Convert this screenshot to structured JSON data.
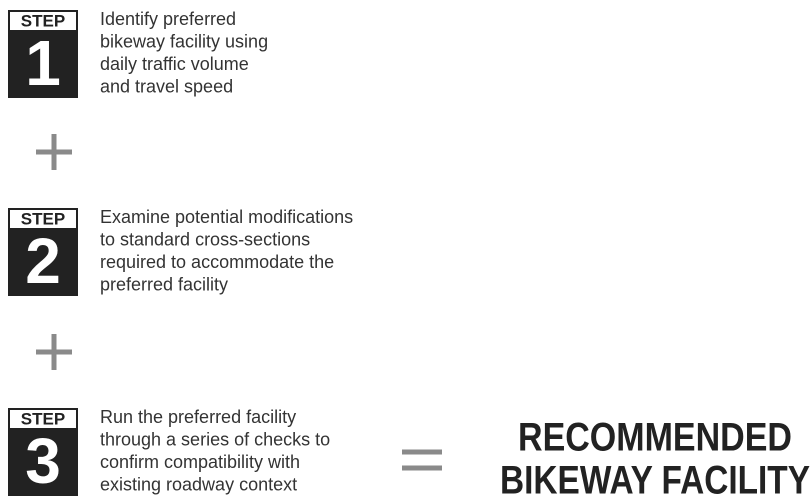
{
  "steps": [
    {
      "label": "STEP",
      "number": "1",
      "lines": [
        "Identify preferred",
        "bikeway facility using",
        "daily traffic volume",
        "and travel speed"
      ]
    },
    {
      "label": "STEP",
      "number": "2",
      "lines": [
        "Examine potential modifications",
        "to standard cross-sections",
        "required to accommodate the",
        "preferred facility"
      ]
    },
    {
      "label": "STEP",
      "number": "3",
      "lines": [
        "Run the preferred facility",
        "through a series of checks to",
        "confirm compatibility with",
        "existing roadway context"
      ]
    }
  ],
  "result": {
    "lines": [
      "RECOMMENDED",
      "BIKEWAY FACILITY"
    ]
  }
}
